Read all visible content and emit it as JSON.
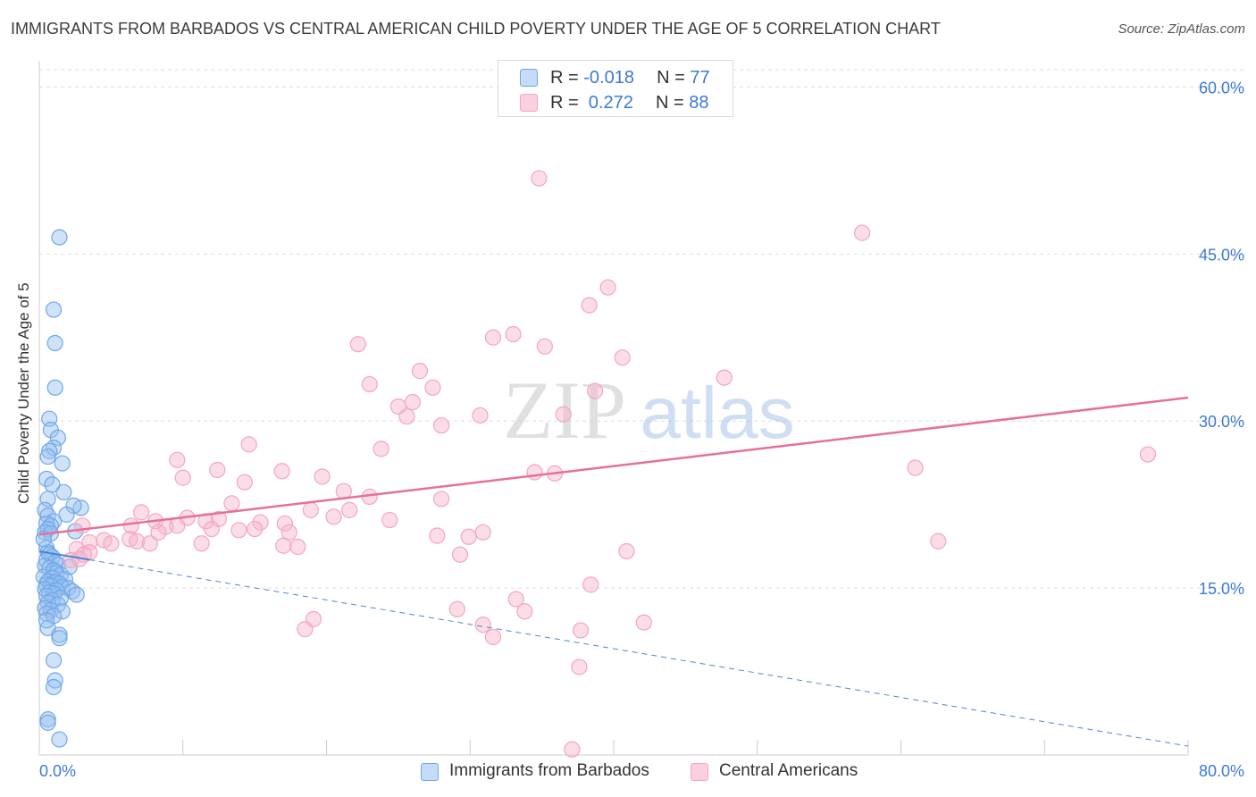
{
  "title": "IMMIGRANTS FROM BARBADOS VS CENTRAL AMERICAN CHILD POVERTY UNDER THE AGE OF 5 CORRELATION CHART",
  "source": "Source: ZipAtlas.com",
  "watermark": {
    "zip": "ZIP",
    "atlas": "atlas"
  },
  "legend_top": [
    {
      "r_label": "R = ",
      "r_value": "-0.018",
      "n_label": "N = ",
      "n_value": "77"
    },
    {
      "r_label": "R = ",
      "r_value": " 0.272",
      "n_label": "N = ",
      "n_value": "88"
    }
  ],
  "chart_data": {
    "type": "scatter",
    "ylabel": "Child Poverty Under the Age of 5",
    "xlim": [
      0,
      80
    ],
    "ylim": [
      0,
      63
    ],
    "x_tick_labels": [
      {
        "value": 0,
        "label": "0.0%"
      },
      {
        "value": 80,
        "label": "80.0%"
      }
    ],
    "y_tick_labels": [
      {
        "value": 15,
        "label": "15.0%"
      },
      {
        "value": 30,
        "label": "30.0%"
      },
      {
        "value": 45,
        "label": "45.0%"
      },
      {
        "value": 60,
        "label": "60.0%"
      }
    ],
    "grid": true,
    "legend_position": "bottom-center",
    "series": [
      {
        "name": "Immigrants from Barbados",
        "color": "#6fa8e8",
        "line_color": "#4a86d8",
        "r": -0.018,
        "n": 77,
        "trend": {
          "x0": 0,
          "y0": 18.3,
          "x1": 80,
          "y1": 0.8,
          "solid_until_x": 3.5,
          "style": "dashed"
        },
        "points": [
          [
            1.4,
            46.5
          ],
          [
            1.0,
            40.0
          ],
          [
            1.1,
            37.0
          ],
          [
            1.1,
            33.0
          ],
          [
            0.7,
            30.2
          ],
          [
            0.8,
            29.2
          ],
          [
            1.3,
            28.5
          ],
          [
            1.0,
            27.6
          ],
          [
            0.7,
            27.3
          ],
          [
            0.6,
            26.8
          ],
          [
            1.6,
            26.2
          ],
          [
            0.5,
            24.8
          ],
          [
            1.7,
            23.6
          ],
          [
            0.6,
            23.0
          ],
          [
            2.9,
            22.2
          ],
          [
            0.4,
            22.0
          ],
          [
            0.6,
            21.5
          ],
          [
            1.0,
            21.0
          ],
          [
            0.5,
            20.8
          ],
          [
            0.8,
            20.6
          ],
          [
            0.6,
            20.3
          ],
          [
            0.4,
            20.0
          ],
          [
            2.5,
            20.1
          ],
          [
            0.8,
            19.9
          ],
          [
            0.5,
            18.6
          ],
          [
            0.6,
            18.2
          ],
          [
            0.7,
            18.0
          ],
          [
            0.9,
            17.8
          ],
          [
            0.5,
            17.5
          ],
          [
            1.1,
            17.3
          ],
          [
            1.3,
            17.1
          ],
          [
            0.4,
            17.0
          ],
          [
            0.7,
            16.8
          ],
          [
            1.0,
            16.6
          ],
          [
            1.2,
            16.4
          ],
          [
            1.5,
            16.2
          ],
          [
            0.3,
            16.0
          ],
          [
            0.9,
            15.9
          ],
          [
            1.8,
            15.8
          ],
          [
            0.6,
            15.6
          ],
          [
            1.1,
            15.5
          ],
          [
            1.4,
            15.4
          ],
          [
            0.5,
            15.3
          ],
          [
            0.8,
            15.2
          ],
          [
            1.6,
            15.1
          ],
          [
            2.0,
            15.0
          ],
          [
            0.4,
            14.9
          ],
          [
            1.2,
            14.8
          ],
          [
            2.3,
            14.7
          ],
          [
            0.7,
            14.6
          ],
          [
            1.0,
            14.5
          ],
          [
            2.6,
            14.4
          ],
          [
            0.5,
            14.3
          ],
          [
            1.5,
            14.1
          ],
          [
            0.9,
            13.9
          ],
          [
            0.6,
            13.7
          ],
          [
            1.3,
            13.5
          ],
          [
            0.4,
            13.2
          ],
          [
            0.8,
            13.0
          ],
          [
            1.6,
            12.9
          ],
          [
            0.5,
            12.7
          ],
          [
            1.0,
            12.5
          ],
          [
            0.6,
            11.4
          ],
          [
            1.4,
            10.8
          ],
          [
            1.4,
            10.5
          ],
          [
            1.0,
            8.5
          ],
          [
            1.1,
            6.7
          ],
          [
            1.0,
            6.1
          ],
          [
            0.6,
            3.2
          ],
          [
            0.6,
            2.9
          ],
          [
            1.4,
            1.4
          ],
          [
            2.4,
            22.4
          ],
          [
            0.3,
            19.4
          ],
          [
            1.9,
            21.6
          ],
          [
            0.9,
            24.3
          ],
          [
            2.1,
            16.9
          ],
          [
            0.5,
            12.1
          ]
        ]
      },
      {
        "name": "Central Americans",
        "color": "#f4a5bf",
        "line_color": "#e5709a",
        "r": 0.272,
        "n": 88,
        "trend": {
          "x0": 0,
          "y0": 19.8,
          "x1": 80,
          "y1": 32.1,
          "style": "solid"
        },
        "points": [
          [
            34.8,
            51.8
          ],
          [
            57.3,
            46.9
          ],
          [
            39.6,
            42.0
          ],
          [
            38.3,
            40.4
          ],
          [
            33.0,
            37.8
          ],
          [
            31.6,
            37.5
          ],
          [
            22.2,
            36.9
          ],
          [
            35.2,
            36.7
          ],
          [
            40.6,
            35.7
          ],
          [
            47.7,
            33.9
          ],
          [
            26.5,
            34.5
          ],
          [
            23.0,
            33.3
          ],
          [
            27.4,
            33.0
          ],
          [
            38.7,
            32.7
          ],
          [
            26.0,
            31.7
          ],
          [
            25.0,
            31.3
          ],
          [
            25.6,
            30.4
          ],
          [
            36.5,
            30.6
          ],
          [
            30.7,
            30.5
          ],
          [
            28.0,
            29.6
          ],
          [
            14.6,
            27.9
          ],
          [
            23.8,
            27.5
          ],
          [
            9.6,
            26.5
          ],
          [
            12.4,
            25.6
          ],
          [
            16.9,
            25.5
          ],
          [
            61.0,
            25.8
          ],
          [
            77.2,
            27.0
          ],
          [
            34.5,
            25.4
          ],
          [
            35.9,
            25.3
          ],
          [
            10.0,
            24.9
          ],
          [
            19.7,
            25.0
          ],
          [
            14.3,
            24.5
          ],
          [
            21.2,
            23.7
          ],
          [
            23.0,
            23.2
          ],
          [
            28.0,
            23.0
          ],
          [
            13.4,
            22.6
          ],
          [
            18.9,
            22.0
          ],
          [
            21.6,
            22.0
          ],
          [
            7.1,
            21.8
          ],
          [
            20.5,
            21.4
          ],
          [
            10.3,
            21.3
          ],
          [
            12.5,
            21.2
          ],
          [
            24.4,
            21.1
          ],
          [
            8.1,
            21.0
          ],
          [
            11.6,
            21.0
          ],
          [
            15.4,
            20.9
          ],
          [
            17.1,
            20.8
          ],
          [
            9.6,
            20.6
          ],
          [
            8.8,
            20.5
          ],
          [
            15.0,
            20.3
          ],
          [
            12.0,
            20.3
          ],
          [
            13.9,
            20.2
          ],
          [
            6.4,
            20.6
          ],
          [
            8.3,
            20.0
          ],
          [
            17.4,
            20.0
          ],
          [
            30.9,
            20.0
          ],
          [
            27.7,
            19.7
          ],
          [
            29.9,
            19.6
          ],
          [
            6.3,
            19.4
          ],
          [
            4.5,
            19.3
          ],
          [
            6.8,
            19.2
          ],
          [
            3.5,
            19.1
          ],
          [
            5.0,
            19.0
          ],
          [
            11.3,
            19.0
          ],
          [
            7.7,
            19.0
          ],
          [
            17.0,
            18.8
          ],
          [
            18.0,
            18.7
          ],
          [
            2.6,
            18.5
          ],
          [
            3.5,
            18.2
          ],
          [
            3.1,
            18.0
          ],
          [
            40.9,
            18.3
          ],
          [
            29.3,
            18.0
          ],
          [
            62.6,
            19.2
          ],
          [
            2.2,
            17.5
          ],
          [
            2.8,
            17.6
          ],
          [
            38.4,
            15.3
          ],
          [
            33.2,
            14.0
          ],
          [
            29.1,
            13.1
          ],
          [
            33.8,
            12.9
          ],
          [
            19.1,
            12.2
          ],
          [
            42.1,
            11.9
          ],
          [
            30.9,
            11.7
          ],
          [
            18.5,
            11.3
          ],
          [
            37.7,
            11.2
          ],
          [
            31.6,
            10.6
          ],
          [
            37.6,
            7.9
          ],
          [
            37.1,
            0.5
          ],
          [
            3.0,
            20.6
          ]
        ]
      }
    ]
  }
}
